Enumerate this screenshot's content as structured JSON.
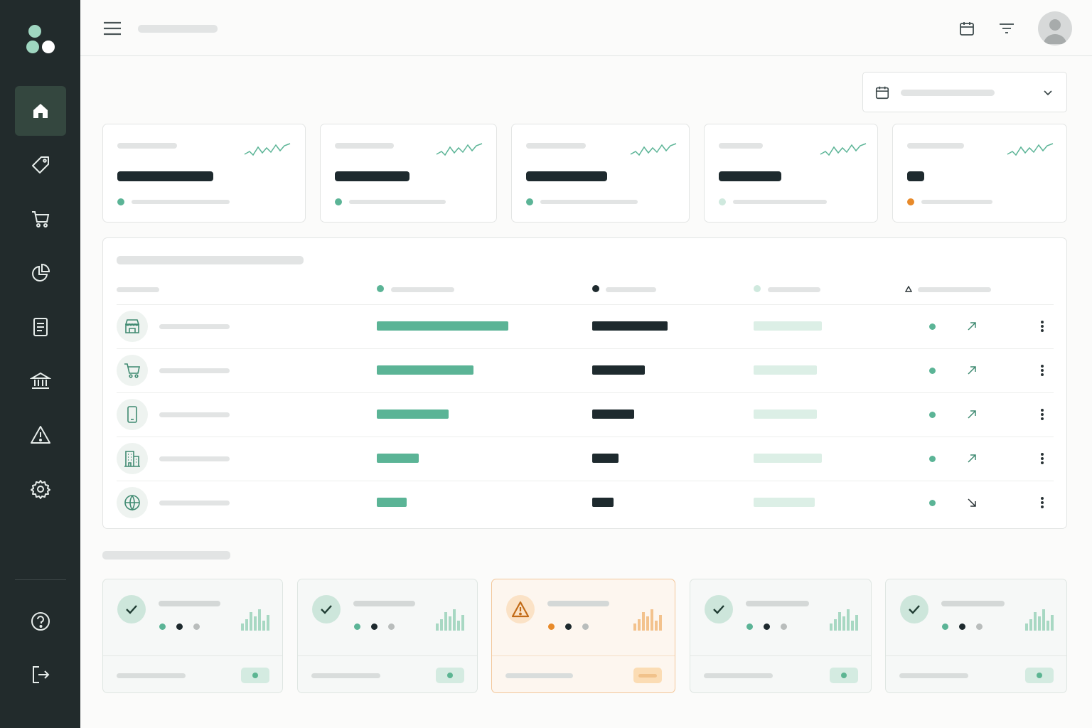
{
  "sidebar": {
    "items": [
      {
        "icon": "home-icon",
        "active": true
      },
      {
        "icon": "tag-icon",
        "active": false
      },
      {
        "icon": "cart-icon",
        "active": false
      },
      {
        "icon": "pie-chart-icon",
        "active": false
      },
      {
        "icon": "document-icon",
        "active": false
      },
      {
        "icon": "bank-icon",
        "active": false
      },
      {
        "icon": "alert-icon",
        "active": false
      },
      {
        "icon": "settings-icon",
        "active": false
      }
    ],
    "bottom_items": [
      {
        "icon": "help-icon"
      },
      {
        "icon": "logout-icon"
      }
    ]
  },
  "header": {
    "icons": [
      "menu-icon",
      "calendar-icon",
      "filter-icon",
      "user-avatar-icon"
    ]
  },
  "date_picker": {
    "icon": "calendar-icon",
    "chevron": "chevron-down-icon"
  },
  "kpis": [
    {
      "status_color": "#5bb496"
    },
    {
      "status_color": "#5bb496"
    },
    {
      "status_color": "#5bb496"
    },
    {
      "status_color": "#cfe9de"
    },
    {
      "status_color": "#e88a2a"
    }
  ],
  "table": {
    "header_dots": [
      "#5bb496",
      "#1e2a2e",
      "#cfe9de",
      "triangle"
    ],
    "rows": [
      {
        "icon": "store-icon",
        "primary": 0.75,
        "secondary": 0.43,
        "tertiary": 0.39,
        "trend": "up"
      },
      {
        "icon": "cart-icon",
        "primary": 0.55,
        "secondary": 0.3,
        "tertiary": 0.36,
        "trend": "up"
      },
      {
        "icon": "mobile-icon",
        "primary": 0.41,
        "secondary": 0.24,
        "tertiary": 0.36,
        "trend": "up"
      },
      {
        "icon": "building-icon",
        "primary": 0.24,
        "secondary": 0.15,
        "tertiary": 0.39,
        "trend": "up"
      },
      {
        "icon": "globe-icon",
        "primary": 0.17,
        "secondary": 0.12,
        "tertiary": 0.35,
        "trend": "down"
      }
    ]
  },
  "monitor_cards": [
    {
      "status": "ok",
      "badge_icon": "check-icon"
    },
    {
      "status": "ok",
      "badge_icon": "check-icon"
    },
    {
      "status": "warning",
      "badge_icon": "warning-icon"
    },
    {
      "status": "ok",
      "badge_icon": "check-icon"
    },
    {
      "status": "ok",
      "badge_icon": "check-icon"
    }
  ],
  "colors": {
    "sidebar_bg": "#222b2c",
    "accent_green": "#5bb496",
    "warning_orange": "#e88a2a",
    "dark_text": "#1e2a2e"
  }
}
